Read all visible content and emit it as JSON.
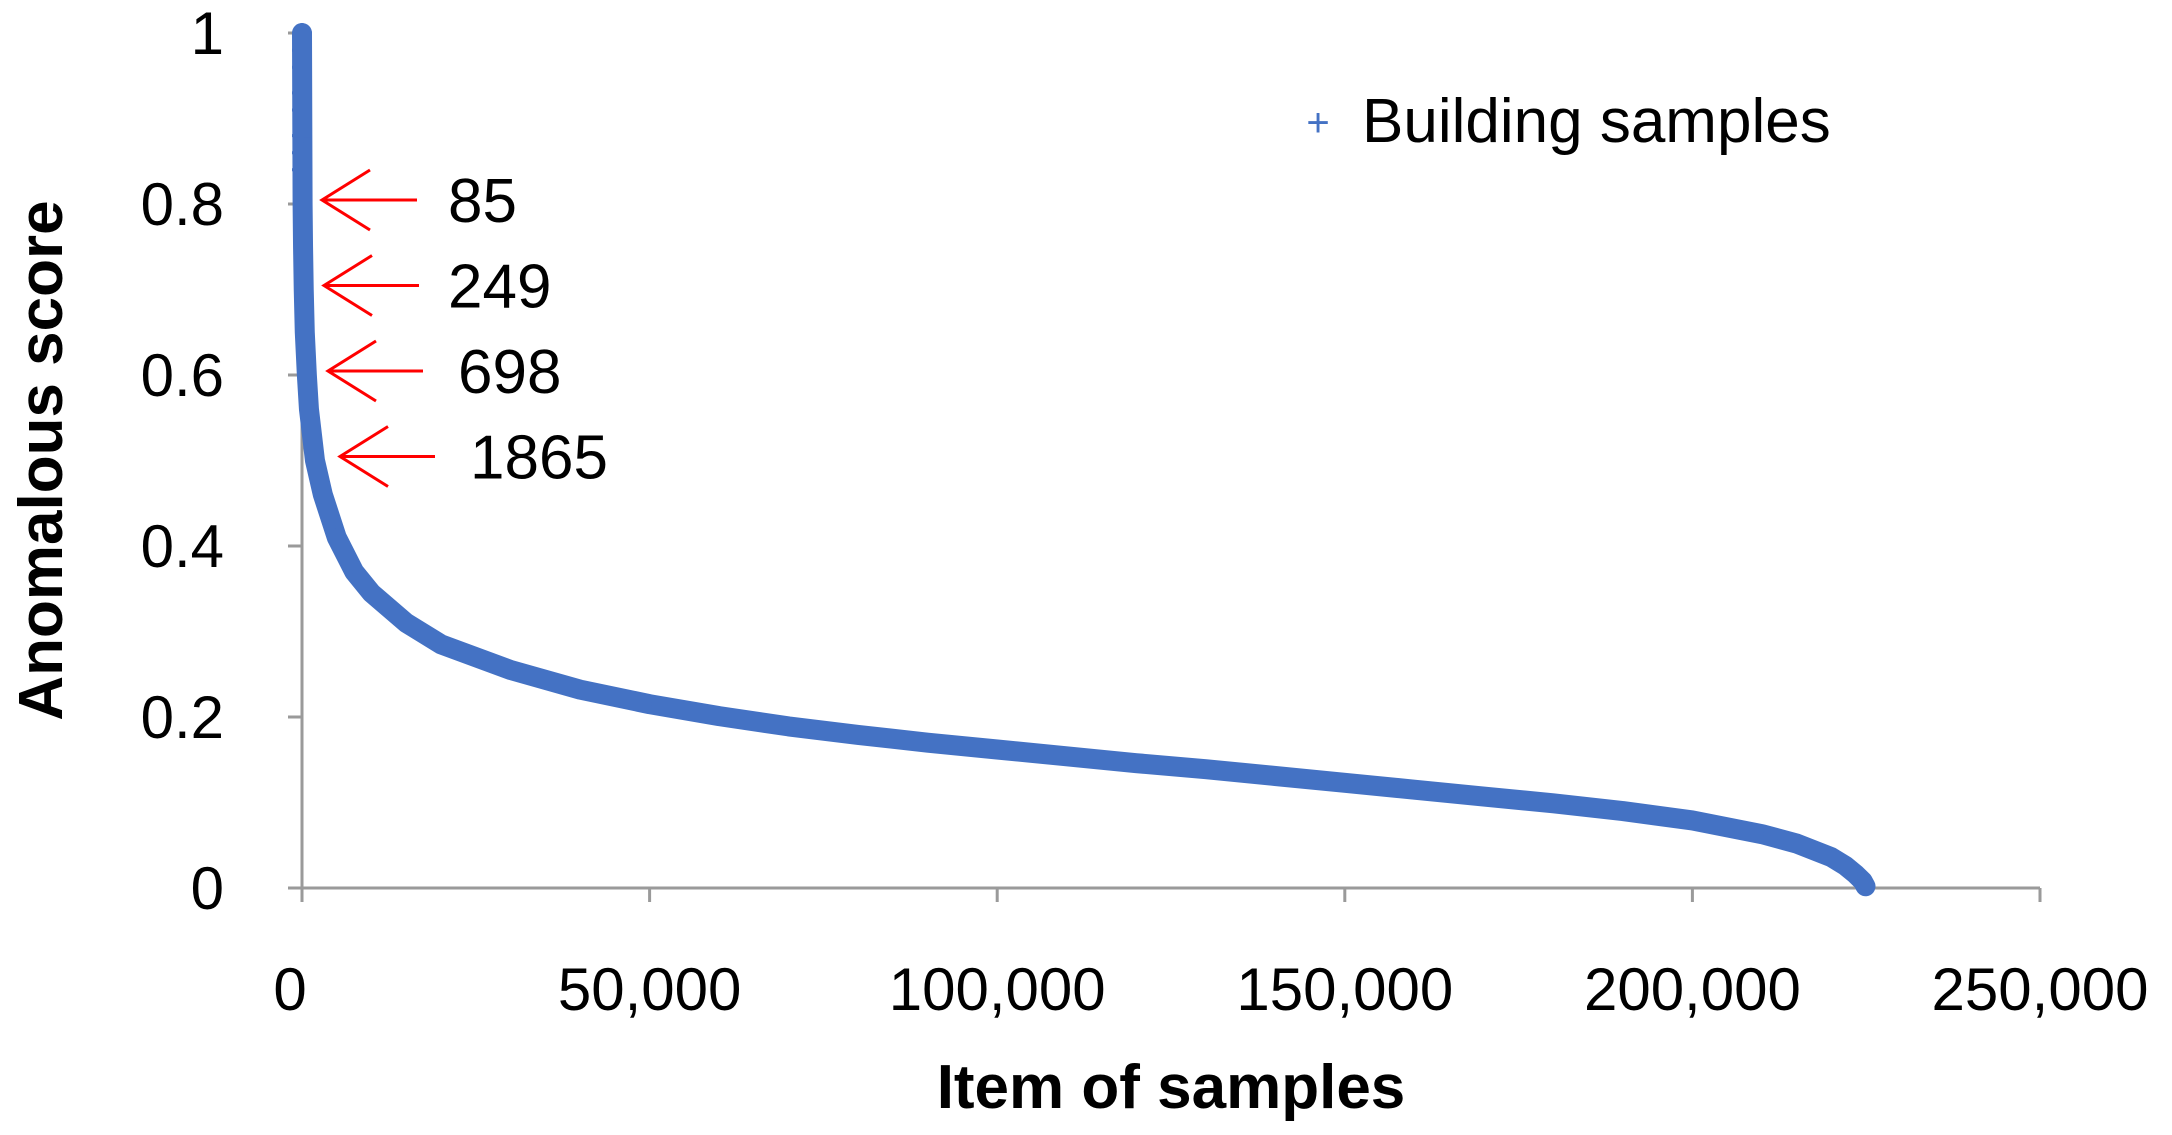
{
  "chart_data": {
    "type": "scatter",
    "xlabel": "Item of samples",
    "ylabel": "Anomalous score",
    "xlim": [
      0,
      250000
    ],
    "ylim": [
      0,
      1
    ],
    "x_ticks": [
      0,
      50000,
      100000,
      150000,
      200000,
      250000
    ],
    "x_tick_labels": [
      "0",
      "50,000",
      "100,000",
      "150,000",
      "200,000",
      "250,000"
    ],
    "y_ticks": [
      0,
      0.2,
      0.4,
      0.6,
      0.8,
      1
    ],
    "y_tick_labels": [
      "0",
      "0.2",
      "0.4",
      "0.6",
      "0.8",
      "1"
    ],
    "grid": false,
    "legend_position": "top-right",
    "series": [
      {
        "name": "Building samples",
        "marker": "plus",
        "color": "#4472C4",
        "x": [
          0,
          50,
          85,
          150,
          249,
          400,
          698,
          1000,
          1865,
          3000,
          5000,
          7500,
          10000,
          15000,
          20000,
          30000,
          40000,
          50000,
          60000,
          70000,
          80000,
          90000,
          100000,
          110000,
          120000,
          130000,
          140000,
          150000,
          160000,
          170000,
          180000,
          190000,
          200000,
          210000,
          215000,
          220000,
          222000,
          223500,
          224500,
          224900
        ],
        "y": [
          1.0,
          0.88,
          0.8,
          0.75,
          0.7,
          0.65,
          0.6,
          0.56,
          0.5,
          0.46,
          0.41,
          0.37,
          0.345,
          0.31,
          0.285,
          0.255,
          0.232,
          0.215,
          0.201,
          0.189,
          0.179,
          0.17,
          0.162,
          0.154,
          0.146,
          0.139,
          0.131,
          0.123,
          0.115,
          0.107,
          0.099,
          0.09,
          0.079,
          0.063,
          0.052,
          0.036,
          0.026,
          0.016,
          0.008,
          0.002
        ]
      }
    ],
    "annotations": [
      {
        "text": "85",
        "y": 0.8,
        "color": "#FF0000"
      },
      {
        "text": "249",
        "y": 0.7,
        "color": "#FF0000"
      },
      {
        "text": "698",
        "y": 0.6,
        "color": "#FF0000"
      },
      {
        "text": "1865",
        "y": 0.5,
        "color": "#FF0000"
      }
    ],
    "sparse_markers_y": [
      1.0,
      0.98,
      0.96,
      0.93,
      0.91,
      0.88,
      0.86,
      0.84
    ]
  }
}
